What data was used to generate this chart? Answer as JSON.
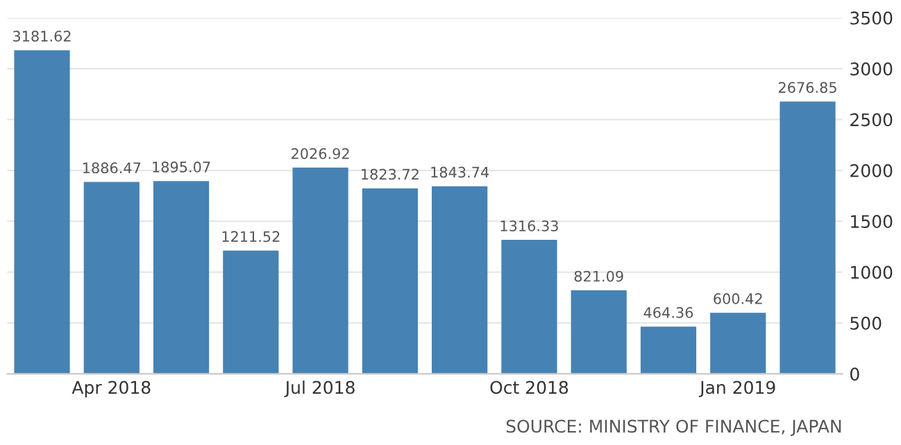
{
  "chart_data": {
    "type": "bar",
    "categories": [
      null,
      "Apr 2018",
      null,
      null,
      "Jul 2018",
      null,
      null,
      "Oct 2018",
      null,
      null,
      "Jan 2019",
      null
    ],
    "values": [
      3181.62,
      1886.47,
      1895.07,
      1211.52,
      2026.92,
      1823.72,
      1843.74,
      1316.33,
      821.09,
      464.36,
      600.42,
      2676.85
    ],
    "value_labels": [
      "3181.62",
      "1886.47",
      "1895.07",
      "1211.52",
      "2026.92",
      "1823.72",
      "1843.74",
      "1316.33",
      "821.09",
      "464.36",
      "600.42",
      "2676.85"
    ],
    "color": "#4682b4",
    "ylim": [
      0,
      3500
    ],
    "yticks": [
      0,
      500,
      1000,
      1500,
      2000,
      2500,
      3000,
      3500
    ],
    "grid": "y",
    "annotations": [
      "SOURCE: MINISTRY OF FINANCE, JAPAN"
    ]
  }
}
